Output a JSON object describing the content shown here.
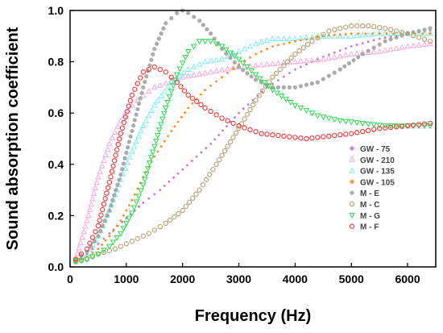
{
  "chart_data": {
    "type": "scatter",
    "title": "",
    "xlabel": "Frequency (Hz)",
    "ylabel": "Sound absorption coefficient",
    "xlim": [
      0,
      6500
    ],
    "ylim": [
      0,
      1.0
    ],
    "x_ticks": [
      0,
      1000,
      2000,
      3000,
      4000,
      5000,
      6000
    ],
    "y_ticks": [
      0.0,
      0.2,
      0.4,
      0.6,
      0.8,
      1.0
    ],
    "x_tick_labels": [
      "0",
      "1000",
      "2000",
      "3000",
      "4000",
      "5000",
      "6000"
    ],
    "y_tick_labels": [
      "0.0",
      "0.2",
      "0.4",
      "0.6",
      "0.8",
      "1.0"
    ],
    "grid": false,
    "legend_position": "right",
    "series": [
      {
        "name": "GW - 75",
        "color": "#c678c6",
        "marker": "dot",
        "x": [
          100,
          300,
          500,
          700,
          1000,
          1300,
          1600,
          2000,
          2500,
          3000,
          3500,
          4000,
          4500,
          5000,
          5500,
          6000,
          6400
        ],
        "y": [
          0.02,
          0.05,
          0.09,
          0.13,
          0.19,
          0.25,
          0.3,
          0.38,
          0.48,
          0.6,
          0.7,
          0.77,
          0.82,
          0.86,
          0.89,
          0.91,
          0.92
        ]
      },
      {
        "name": "GW - 210",
        "color": "#f4a9df",
        "marker": "triangle",
        "x": [
          100,
          300,
          500,
          700,
          900,
          1100,
          1300,
          1500,
          2000,
          2500,
          3000,
          3500,
          4000,
          4500,
          5000,
          5500,
          6000,
          6400
        ],
        "y": [
          0.03,
          0.18,
          0.35,
          0.48,
          0.57,
          0.63,
          0.67,
          0.7,
          0.74,
          0.76,
          0.78,
          0.79,
          0.8,
          0.81,
          0.83,
          0.84,
          0.86,
          0.87
        ]
      },
      {
        "name": "GW - 135",
        "color": "#80ecec",
        "marker": "triangle",
        "x": [
          100,
          300,
          500,
          700,
          900,
          1100,
          1300,
          1500,
          1800,
          2100,
          2400,
          2700,
          3000,
          3300,
          3600,
          4000,
          4500,
          5000,
          5500,
          6000,
          6400
        ],
        "y": [
          0.02,
          0.05,
          0.12,
          0.22,
          0.34,
          0.45,
          0.55,
          0.63,
          0.72,
          0.77,
          0.8,
          0.81,
          0.84,
          0.87,
          0.89,
          0.89,
          0.9,
          0.9,
          0.91,
          0.91,
          0.91
        ]
      },
      {
        "name": "GW - 105",
        "color": "#ff8c1a",
        "marker": "dot",
        "x": [
          100,
          300,
          500,
          700,
          900,
          1100,
          1300,
          1500,
          1800,
          2100,
          2400,
          2700,
          3000,
          3300,
          3600,
          4000,
          4500,
          5000,
          5500,
          6000,
          6400
        ],
        "y": [
          0.02,
          0.04,
          0.07,
          0.12,
          0.18,
          0.26,
          0.35,
          0.43,
          0.53,
          0.62,
          0.69,
          0.74,
          0.79,
          0.83,
          0.86,
          0.88,
          0.9,
          0.91,
          0.91,
          0.91,
          0.91
        ]
      },
      {
        "name": "M - E",
        "color": "#9e9e9e",
        "marker": "circle-filled",
        "x": [
          100,
          300,
          500,
          700,
          900,
          1100,
          1300,
          1500,
          1700,
          1900,
          2000,
          2100,
          2300,
          2500,
          2700,
          3000,
          3300,
          3600,
          4000,
          4400,
          4800,
          5200,
          5600,
          6000,
          6400
        ],
        "y": [
          0.03,
          0.06,
          0.12,
          0.22,
          0.36,
          0.53,
          0.7,
          0.85,
          0.95,
          0.99,
          1.0,
          0.99,
          0.96,
          0.91,
          0.85,
          0.78,
          0.73,
          0.7,
          0.7,
          0.72,
          0.77,
          0.83,
          0.88,
          0.91,
          0.93
        ]
      },
      {
        "name": "M - C",
        "color": "#b5a77a",
        "marker": "circle-open",
        "x": [
          100,
          300,
          500,
          800,
          1100,
          1400,
          1700,
          2000,
          2300,
          2600,
          3000,
          3300,
          3600,
          4000,
          4300,
          4600,
          5000,
          5300,
          5600,
          6000,
          6400
        ],
        "y": [
          0.02,
          0.03,
          0.05,
          0.07,
          0.1,
          0.13,
          0.17,
          0.22,
          0.3,
          0.4,
          0.54,
          0.65,
          0.74,
          0.83,
          0.88,
          0.92,
          0.94,
          0.94,
          0.93,
          0.91,
          0.88
        ]
      },
      {
        "name": "M - G",
        "color": "#2bd94c",
        "marker": "triangle-down",
        "x": [
          100,
          300,
          500,
          700,
          900,
          1100,
          1300,
          1500,
          1700,
          1900,
          2100,
          2300,
          2500,
          2700,
          3000,
          3300,
          3600,
          4000,
          4400,
          4800,
          5200,
          5600,
          6000,
          6400
        ],
        "y": [
          0.02,
          0.03,
          0.05,
          0.08,
          0.13,
          0.21,
          0.32,
          0.47,
          0.62,
          0.75,
          0.84,
          0.88,
          0.88,
          0.86,
          0.81,
          0.75,
          0.69,
          0.63,
          0.59,
          0.57,
          0.56,
          0.55,
          0.55,
          0.55
        ]
      },
      {
        "name": "M - F",
        "color": "#f04040",
        "marker": "circle-open",
        "x": [
          100,
          300,
          500,
          700,
          900,
          1100,
          1300,
          1500,
          1700,
          1900,
          2100,
          2400,
          2700,
          3000,
          3400,
          3800,
          4200,
          4600,
          5000,
          5500,
          6000,
          6400
        ],
        "y": [
          0.03,
          0.07,
          0.16,
          0.33,
          0.52,
          0.67,
          0.76,
          0.78,
          0.76,
          0.72,
          0.67,
          0.62,
          0.58,
          0.55,
          0.52,
          0.51,
          0.5,
          0.51,
          0.52,
          0.54,
          0.55,
          0.56
        ]
      }
    ]
  }
}
